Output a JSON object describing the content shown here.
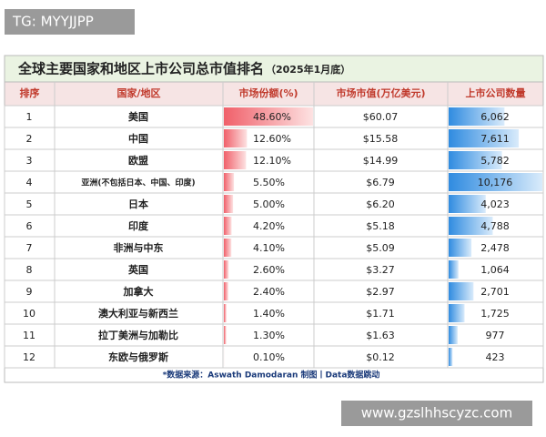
{
  "watermark_top": "TG: MYYJJPP",
  "title": "全球主要国家和地区上市公司总市值排名",
  "subtitle": "（2025年1月底）",
  "table": {
    "headers": [
      "排序",
      "国家/地区",
      "市场份额(%)",
      "市场市值(万亿美元)",
      "上市公司数量"
    ],
    "rows": [
      {
        "rank": 1,
        "region": "美国",
        "share": 48.6,
        "share_label": "48.60%",
        "market_cap": "$60.07",
        "companies": 6062,
        "companies_label": "6,062"
      },
      {
        "rank": 2,
        "region": "中国",
        "share": 12.6,
        "share_label": "12.60%",
        "market_cap": "$15.58",
        "companies": 7611,
        "companies_label": "7,611"
      },
      {
        "rank": 3,
        "region": "欧盟",
        "share": 12.1,
        "share_label": "12.10%",
        "market_cap": "$14.99",
        "companies": 5782,
        "companies_label": "5,782"
      },
      {
        "rank": 4,
        "region": "亚洲(不包括日本、中国、印度)",
        "share": 5.5,
        "share_label": "5.50%",
        "market_cap": "$6.79",
        "companies": 10176,
        "companies_label": "10,176"
      },
      {
        "rank": 5,
        "region": "日本",
        "share": 5.0,
        "share_label": "5.00%",
        "market_cap": "$6.20",
        "companies": 4023,
        "companies_label": "4,023"
      },
      {
        "rank": 6,
        "region": "印度",
        "share": 4.2,
        "share_label": "4.20%",
        "market_cap": "$5.18",
        "companies": 4788,
        "companies_label": "4,788"
      },
      {
        "rank": 7,
        "region": "非洲与中东",
        "share": 4.1,
        "share_label": "4.10%",
        "market_cap": "$5.09",
        "companies": 2478,
        "companies_label": "2,478"
      },
      {
        "rank": 8,
        "region": "英国",
        "share": 2.6,
        "share_label": "2.60%",
        "market_cap": "$3.27",
        "companies": 1064,
        "companies_label": "1,064"
      },
      {
        "rank": 9,
        "region": "加拿大",
        "share": 2.4,
        "share_label": "2.40%",
        "market_cap": "$2.97",
        "companies": 2701,
        "companies_label": "2,701"
      },
      {
        "rank": 10,
        "region": "澳大利亚与新西兰",
        "share": 1.4,
        "share_label": "1.40%",
        "market_cap": "$1.71",
        "companies": 1725,
        "companies_label": "1,725"
      },
      {
        "rank": 11,
        "region": "拉丁美洲与加勒比",
        "share": 1.3,
        "share_label": "1.30%",
        "market_cap": "$1.63",
        "companies": 977,
        "companies_label": "977"
      },
      {
        "rank": 12,
        "region": "东欧与俄罗斯",
        "share": 0.1,
        "share_label": "0.10%",
        "market_cap": "$0.12",
        "companies": 423,
        "companies_label": "423"
      }
    ]
  },
  "footer": "*数据来源：Aswath Damodaran    制图丨Data数据跳动",
  "watermark_bottom": "www.gzslhhscyzc.com"
}
